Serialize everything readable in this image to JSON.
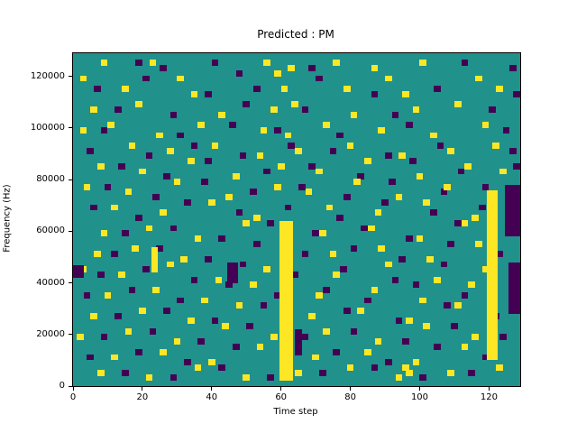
{
  "chart_data": {
    "type": "heatmap",
    "title": "Predicted : PM",
    "xlabel": "Time step",
    "ylabel": "Frequency (Hz)",
    "xlim": [
      0,
      129
    ],
    "ylim": [
      0,
      129000
    ],
    "x_ticks": [
      0,
      20,
      40,
      60,
      80,
      100,
      120
    ],
    "y_ticks": [
      0,
      20000,
      40000,
      60000,
      80000,
      100000,
      120000
    ],
    "grid": false,
    "legend": null,
    "colors": {
      "background": "#21918c",
      "active": "#fde725",
      "inactive": "#440154"
    },
    "cell_size": {
      "w_steps": 2,
      "h_hz": 2400
    },
    "yellow_columns": [
      {
        "x": 59.5,
        "w": 4,
        "y0": 2000,
        "y1": 64000
      },
      {
        "x": 119.5,
        "w": 3,
        "y0": 10000,
        "y1": 76000
      },
      {
        "x": 22.5,
        "w": 2,
        "y0": 44000,
        "y1": 54000
      }
    ],
    "purple_blocks": [
      {
        "x": 125.5,
        "w": 3.5,
        "y0": 28000,
        "y1": 48000
      },
      {
        "x": 124.5,
        "w": 4.5,
        "y0": 58000,
        "y1": 78000
      },
      {
        "x": 44.5,
        "w": 3,
        "y0": 40000,
        "y1": 48000
      },
      {
        "x": 64,
        "w": 2,
        "y0": 12000,
        "y1": 22000
      },
      {
        "x": 0,
        "w": 3,
        "y0": 42000,
        "y1": 47000
      }
    ],
    "yellow_cells": [
      [
        8,
        124000
      ],
      [
        22,
        124000
      ],
      [
        55,
        124000
      ],
      [
        62,
        122000
      ],
      [
        75,
        124000
      ],
      [
        86,
        122000
      ],
      [
        100,
        124000
      ],
      [
        2,
        118000
      ],
      [
        30,
        118000
      ],
      [
        58,
        120000
      ],
      [
        90,
        118000
      ],
      [
        116,
        118000
      ],
      [
        14,
        114000
      ],
      [
        34,
        112000
      ],
      [
        60,
        114000
      ],
      [
        78,
        114000
      ],
      [
        95,
        112000
      ],
      [
        122,
        114000
      ],
      [
        5,
        106000
      ],
      [
        18,
        108000
      ],
      [
        42,
        104000
      ],
      [
        57,
        106000
      ],
      [
        63,
        108000
      ],
      [
        80,
        104000
      ],
      [
        98,
        106000
      ],
      [
        110,
        108000
      ],
      [
        2,
        98000
      ],
      [
        10,
        100000
      ],
      [
        24,
        96000
      ],
      [
        36,
        100000
      ],
      [
        54,
        98000
      ],
      [
        61,
        96000
      ],
      [
        72,
        100000
      ],
      [
        88,
        98000
      ],
      [
        103,
        96000
      ],
      [
        118,
        100000
      ],
      [
        16,
        92000
      ],
      [
        27,
        90000
      ],
      [
        40,
        92000
      ],
      [
        53,
        88000
      ],
      [
        64,
        90000
      ],
      [
        79,
        92000
      ],
      [
        94,
        88000
      ],
      [
        108,
        90000
      ],
      [
        121,
        92000
      ],
      [
        7,
        84000
      ],
      [
        19,
        82000
      ],
      [
        33,
        86000
      ],
      [
        46,
        80000
      ],
      [
        59,
        84000
      ],
      [
        70,
        82000
      ],
      [
        84,
        86000
      ],
      [
        99,
        80000
      ],
      [
        113,
        84000
      ],
      [
        123,
        82000
      ],
      [
        3,
        76000
      ],
      [
        15,
        74000
      ],
      [
        29,
        78000
      ],
      [
        44,
        72000
      ],
      [
        58,
        76000
      ],
      [
        67,
        74000
      ],
      [
        81,
        78000
      ],
      [
        93,
        72000
      ],
      [
        107,
        76000
      ],
      [
        11,
        68000
      ],
      [
        25,
        66000
      ],
      [
        39,
        70000
      ],
      [
        52,
        64000
      ],
      [
        73,
        68000
      ],
      [
        87,
        66000
      ],
      [
        101,
        70000
      ],
      [
        115,
        64000
      ],
      [
        8,
        58000
      ],
      [
        21,
        60000
      ],
      [
        35,
        56000
      ],
      [
        49,
        62000
      ],
      [
        71,
        58000
      ],
      [
        85,
        60000
      ],
      [
        99,
        56000
      ],
      [
        112,
        62000
      ],
      [
        6,
        50000
      ],
      [
        17,
        52000
      ],
      [
        31,
        48000
      ],
      [
        74,
        50000
      ],
      [
        88,
        52000
      ],
      [
        102,
        48000
      ],
      [
        116,
        54000
      ],
      [
        2,
        44000
      ],
      [
        13,
        42000
      ],
      [
        27,
        46000
      ],
      [
        41,
        40000
      ],
      [
        55,
        44000
      ],
      [
        75,
        42000
      ],
      [
        90,
        46000
      ],
      [
        104,
        40000
      ],
      [
        118,
        44000
      ],
      [
        9,
        34000
      ],
      [
        23,
        36000
      ],
      [
        37,
        32000
      ],
      [
        51,
        38000
      ],
      [
        70,
        34000
      ],
      [
        86,
        36000
      ],
      [
        100,
        32000
      ],
      [
        114,
        38000
      ],
      [
        5,
        26000
      ],
      [
        19,
        28000
      ],
      [
        33,
        24000
      ],
      [
        47,
        30000
      ],
      [
        68,
        26000
      ],
      [
        82,
        28000
      ],
      [
        96,
        24000
      ],
      [
        110,
        30000
      ],
      [
        1,
        18000
      ],
      [
        15,
        20000
      ],
      [
        29,
        16000
      ],
      [
        43,
        22000
      ],
      [
        57,
        18000
      ],
      [
        72,
        20000
      ],
      [
        87,
        16000
      ],
      [
        101,
        22000
      ],
      [
        115,
        18000
      ],
      [
        11,
        10000
      ],
      [
        25,
        12000
      ],
      [
        39,
        8000
      ],
      [
        53,
        14000
      ],
      [
        69,
        10000
      ],
      [
        84,
        12000
      ],
      [
        95,
        6000
      ],
      [
        98,
        8000
      ],
      [
        112,
        14000
      ],
      [
        7,
        4000
      ],
      [
        21,
        2000
      ],
      [
        35,
        6000
      ],
      [
        49,
        2000
      ],
      [
        64,
        4000
      ],
      [
        79,
        6000
      ],
      [
        93,
        2000
      ],
      [
        96,
        4000
      ],
      [
        108,
        4000
      ],
      [
        122,
        6000
      ]
    ],
    "purple_cells": [
      [
        18,
        124000
      ],
      [
        25,
        122000
      ],
      [
        40,
        124000
      ],
      [
        68,
        122000
      ],
      [
        112,
        124000
      ],
      [
        126,
        122000
      ],
      [
        20,
        118000
      ],
      [
        47,
        120000
      ],
      [
        70,
        118000
      ],
      [
        6,
        114000
      ],
      [
        38,
        112000
      ],
      [
        52,
        114000
      ],
      [
        86,
        112000
      ],
      [
        104,
        114000
      ],
      [
        127,
        112000
      ],
      [
        12,
        106000
      ],
      [
        28,
        104000
      ],
      [
        49,
        108000
      ],
      [
        66,
        106000
      ],
      [
        92,
        104000
      ],
      [
        120,
        106000
      ],
      [
        8,
        98000
      ],
      [
        30,
        96000
      ],
      [
        45,
        100000
      ],
      [
        58,
        98000
      ],
      [
        76,
        96000
      ],
      [
        96,
        100000
      ],
      [
        124,
        98000
      ],
      [
        4,
        90000
      ],
      [
        21,
        88000
      ],
      [
        34,
        92000
      ],
      [
        48,
        88000
      ],
      [
        62,
        92000
      ],
      [
        74,
        90000
      ],
      [
        90,
        88000
      ],
      [
        105,
        92000
      ],
      [
        126,
        90000
      ],
      [
        13,
        84000
      ],
      [
        26,
        80000
      ],
      [
        38,
        86000
      ],
      [
        55,
        82000
      ],
      [
        68,
        84000
      ],
      [
        82,
        80000
      ],
      [
        97,
        86000
      ],
      [
        111,
        82000
      ],
      [
        127,
        84000
      ],
      [
        9,
        76000
      ],
      [
        23,
        72000
      ],
      [
        37,
        78000
      ],
      [
        51,
        74000
      ],
      [
        65,
        76000
      ],
      [
        78,
        72000
      ],
      [
        91,
        78000
      ],
      [
        106,
        74000
      ],
      [
        118,
        76000
      ],
      [
        5,
        68000
      ],
      [
        18,
        64000
      ],
      [
        32,
        70000
      ],
      [
        47,
        66000
      ],
      [
        61,
        68000
      ],
      [
        76,
        64000
      ],
      [
        89,
        70000
      ],
      [
        103,
        66000
      ],
      [
        117,
        68000
      ],
      [
        14,
        58000
      ],
      [
        28,
        60000
      ],
      [
        42,
        56000
      ],
      [
        56,
        62000
      ],
      [
        69,
        58000
      ],
      [
        83,
        60000
      ],
      [
        96,
        56000
      ],
      [
        110,
        62000
      ],
      [
        11,
        50000
      ],
      [
        24,
        52000
      ],
      [
        38,
        48000
      ],
      [
        52,
        54000
      ],
      [
        66,
        50000
      ],
      [
        80,
        52000
      ],
      [
        94,
        48000
      ],
      [
        108,
        54000
      ],
      [
        122,
        50000
      ],
      [
        7,
        42000
      ],
      [
        20,
        44000
      ],
      [
        34,
        40000
      ],
      [
        48,
        46000
      ],
      [
        63,
        42000
      ],
      [
        77,
        44000
      ],
      [
        92,
        40000
      ],
      [
        106,
        46000
      ],
      [
        3,
        34000
      ],
      [
        16,
        36000
      ],
      [
        30,
        32000
      ],
      [
        44,
        38000
      ],
      [
        58,
        34000
      ],
      [
        72,
        36000
      ],
      [
        84,
        32000
      ],
      [
        98,
        38000
      ],
      [
        112,
        34000
      ],
      [
        12,
        26000
      ],
      [
        26,
        28000
      ],
      [
        40,
        24000
      ],
      [
        54,
        30000
      ],
      [
        78,
        28000
      ],
      [
        93,
        24000
      ],
      [
        107,
        30000
      ],
      [
        121,
        26000
      ],
      [
        8,
        18000
      ],
      [
        22,
        20000
      ],
      [
        36,
        16000
      ],
      [
        50,
        22000
      ],
      [
        66,
        18000
      ],
      [
        80,
        20000
      ],
      [
        95,
        16000
      ],
      [
        109,
        22000
      ],
      [
        123,
        18000
      ],
      [
        4,
        10000
      ],
      [
        18,
        12000
      ],
      [
        32,
        8000
      ],
      [
        46,
        14000
      ],
      [
        61,
        10000
      ],
      [
        75,
        12000
      ],
      [
        90,
        8000
      ],
      [
        104,
        14000
      ],
      [
        118,
        10000
      ],
      [
        14,
        4000
      ],
      [
        28,
        2000
      ],
      [
        42,
        6000
      ],
      [
        56,
        2000
      ],
      [
        71,
        4000
      ],
      [
        86,
        6000
      ],
      [
        100,
        2000
      ],
      [
        114,
        4000
      ]
    ]
  }
}
